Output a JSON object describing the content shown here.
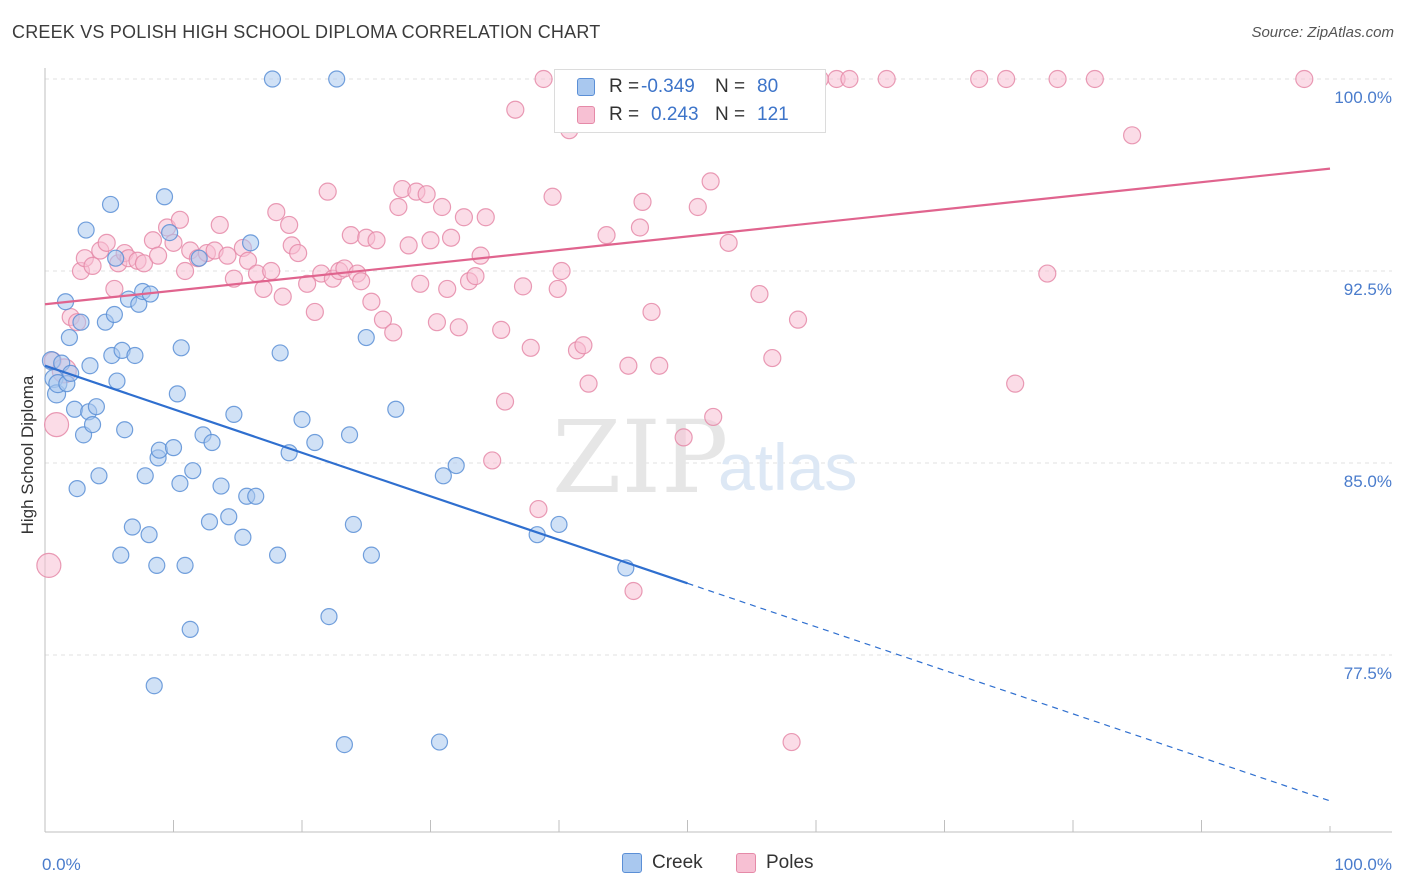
{
  "header": {
    "title": "CREEK VS POLISH HIGH SCHOOL DIPLOMA CORRELATION CHART",
    "source": "Source: ZipAtlas.com"
  },
  "watermark": {
    "zip": "ZIP",
    "atlas": "atlas"
  },
  "legend": {
    "rows": [
      {
        "r_label": "R =",
        "r_value": "-0.349",
        "n_label": "N =",
        "n_value": "80"
      },
      {
        "r_label": "R =",
        "r_value": "0.243",
        "n_label": "N =",
        "n_value": "121"
      }
    ]
  },
  "colors": {
    "creek_fill": "#a9c8ef",
    "creek_stroke": "#5b8fd6",
    "creek_line": "#2f6fcf",
    "poles_fill": "#f7c0d3",
    "poles_stroke": "#e58aa8",
    "poles_line": "#e0648e",
    "tick_label": "#4a7ccc",
    "grid": "#e2e2e2"
  },
  "chart_data": {
    "type": "scatter",
    "title": "CREEK VS POLISH HIGH SCHOOL DIPLOMA CORRELATION CHART",
    "xlabel": "",
    "ylabel": "High School Diploma",
    "xlim": [
      0,
      100
    ],
    "ylim": [
      71.5,
      101
    ],
    "x_tick_labels": [
      "0.0%",
      "100.0%"
    ],
    "y_ticks": [
      77.5,
      85.0,
      92.5,
      100.0
    ],
    "y_tick_labels": [
      "77.5%",
      "85.0%",
      "92.5%",
      "100.0%"
    ],
    "grid": "horizontal dashed",
    "legend_position": "top-center",
    "series": [
      {
        "name": "Creek",
        "r": -0.349,
        "n": 80,
        "trend": {
          "x_start": 0,
          "y_start": 88.8,
          "x_solid_end": 50,
          "y_solid_end": 80.3,
          "x_end": 100,
          "y_end": 71.8
        },
        "points": [
          [
            0.5,
            89.0
          ],
          [
            0.7,
            88.3
          ],
          [
            0.9,
            87.7
          ],
          [
            1.0,
            88.1
          ],
          [
            1.3,
            88.9
          ],
          [
            1.6,
            91.3
          ],
          [
            1.7,
            88.1
          ],
          [
            1.9,
            89.9
          ],
          [
            2.0,
            88.5
          ],
          [
            2.3,
            87.1
          ],
          [
            2.5,
            84.0
          ],
          [
            2.8,
            90.5
          ],
          [
            3.0,
            86.1
          ],
          [
            3.2,
            94.1
          ],
          [
            3.4,
            87.0
          ],
          [
            3.5,
            88.8
          ],
          [
            3.7,
            86.5
          ],
          [
            4.0,
            87.2
          ],
          [
            4.2,
            84.5
          ],
          [
            4.7,
            90.5
          ],
          [
            5.1,
            95.1
          ],
          [
            5.2,
            89.2
          ],
          [
            5.4,
            90.8
          ],
          [
            5.6,
            88.2
          ],
          [
            5.9,
            81.4
          ],
          [
            6.0,
            89.4
          ],
          [
            6.2,
            86.3
          ],
          [
            6.5,
            91.4
          ],
          [
            6.8,
            82.5
          ],
          [
            7.0,
            89.2
          ],
          [
            7.3,
            91.2
          ],
          [
            7.6,
            91.7
          ],
          [
            7.8,
            84.5
          ],
          [
            8.1,
            82.2
          ],
          [
            8.2,
            91.6
          ],
          [
            8.5,
            76.3
          ],
          [
            8.7,
            81.0
          ],
          [
            8.8,
            85.2
          ],
          [
            8.9,
            85.5
          ],
          [
            9.3,
            95.4
          ],
          [
            9.7,
            94.0
          ],
          [
            10.0,
            85.6
          ],
          [
            10.3,
            87.7
          ],
          [
            10.5,
            84.2
          ],
          [
            10.6,
            89.5
          ],
          [
            10.9,
            81.0
          ],
          [
            11.3,
            78.5
          ],
          [
            11.5,
            84.7
          ],
          [
            12.3,
            86.1
          ],
          [
            12.8,
            82.7
          ],
          [
            13.0,
            85.8
          ],
          [
            13.7,
            84.1
          ],
          [
            14.3,
            82.9
          ],
          [
            14.7,
            86.9
          ],
          [
            15.4,
            82.1
          ],
          [
            15.7,
            83.7
          ],
          [
            16.0,
            93.6
          ],
          [
            16.4,
            83.7
          ],
          [
            18.1,
            81.4
          ],
          [
            18.3,
            89.3
          ],
          [
            19.0,
            85.4
          ],
          [
            20.0,
            86.7
          ],
          [
            21.0,
            85.8
          ],
          [
            22.1,
            79.0
          ],
          [
            22.7,
            100.0
          ],
          [
            23.3,
            74.0
          ],
          [
            23.7,
            86.1
          ],
          [
            24.0,
            82.6
          ],
          [
            25.0,
            89.9
          ],
          [
            25.4,
            81.4
          ],
          [
            27.3,
            87.1
          ],
          [
            30.7,
            74.1
          ],
          [
            31.0,
            84.5
          ],
          [
            32.0,
            84.9
          ],
          [
            38.3,
            82.2
          ],
          [
            40.0,
            82.6
          ],
          [
            45.2,
            80.9
          ],
          [
            17.7,
            100.0
          ],
          [
            5.5,
            93.0
          ],
          [
            12.0,
            93.0
          ]
        ]
      },
      {
        "name": "Poles",
        "r": 0.243,
        "n": 121,
        "trend": {
          "x_start": 0,
          "y_start": 91.2,
          "x_end": 100,
          "y_end": 96.5
        },
        "points": [
          [
            0.3,
            81.0
          ],
          [
            0.6,
            89.0
          ],
          [
            0.9,
            86.5
          ],
          [
            1.5,
            88.6
          ],
          [
            2.0,
            90.7
          ],
          [
            2.5,
            90.5
          ],
          [
            2.8,
            92.5
          ],
          [
            3.1,
            93.0
          ],
          [
            3.7,
            92.7
          ],
          [
            4.3,
            93.3
          ],
          [
            4.8,
            93.6
          ],
          [
            5.4,
            91.8
          ],
          [
            5.7,
            92.8
          ],
          [
            6.2,
            93.2
          ],
          [
            6.5,
            93.0
          ],
          [
            7.2,
            92.9
          ],
          [
            7.7,
            92.8
          ],
          [
            8.4,
            93.7
          ],
          [
            8.8,
            93.1
          ],
          [
            9.5,
            94.2
          ],
          [
            10.0,
            93.6
          ],
          [
            10.5,
            94.5
          ],
          [
            10.9,
            92.5
          ],
          [
            11.3,
            93.3
          ],
          [
            11.9,
            93.0
          ],
          [
            12.6,
            93.2
          ],
          [
            13.2,
            93.3
          ],
          [
            13.6,
            94.3
          ],
          [
            14.2,
            93.1
          ],
          [
            14.7,
            92.2
          ],
          [
            15.4,
            93.4
          ],
          [
            15.8,
            92.9
          ],
          [
            16.5,
            92.4
          ],
          [
            17.0,
            91.8
          ],
          [
            17.6,
            92.5
          ],
          [
            18.0,
            94.8
          ],
          [
            18.5,
            91.5
          ],
          [
            19.0,
            94.3
          ],
          [
            19.2,
            93.5
          ],
          [
            19.7,
            93.2
          ],
          [
            20.4,
            92.0
          ],
          [
            21.0,
            90.9
          ],
          [
            21.5,
            92.4
          ],
          [
            22.0,
            95.6
          ],
          [
            22.4,
            92.2
          ],
          [
            22.9,
            92.5
          ],
          [
            23.3,
            92.6
          ],
          [
            23.8,
            93.9
          ],
          [
            24.3,
            92.4
          ],
          [
            24.6,
            92.1
          ],
          [
            25.0,
            93.8
          ],
          [
            25.4,
            91.3
          ],
          [
            25.8,
            93.7
          ],
          [
            26.3,
            90.6
          ],
          [
            27.1,
            90.1
          ],
          [
            27.5,
            95.0
          ],
          [
            27.8,
            95.7
          ],
          [
            28.3,
            93.5
          ],
          [
            28.9,
            95.6
          ],
          [
            29.2,
            92.0
          ],
          [
            30.0,
            93.7
          ],
          [
            30.5,
            90.5
          ],
          [
            30.9,
            95.0
          ],
          [
            31.3,
            91.8
          ],
          [
            31.6,
            93.8
          ],
          [
            32.2,
            90.3
          ],
          [
            32.6,
            94.6
          ],
          [
            33.0,
            92.1
          ],
          [
            33.5,
            92.3
          ],
          [
            33.9,
            93.1
          ],
          [
            34.3,
            94.6
          ],
          [
            34.8,
            85.1
          ],
          [
            35.5,
            90.2
          ],
          [
            35.8,
            87.4
          ],
          [
            36.6,
            98.8
          ],
          [
            37.2,
            91.9
          ],
          [
            37.8,
            89.5
          ],
          [
            38.4,
            83.2
          ],
          [
            38.8,
            100.0
          ],
          [
            39.5,
            95.4
          ],
          [
            39.9,
            91.8
          ],
          [
            40.2,
            92.5
          ],
          [
            40.8,
            98.0
          ],
          [
            41.4,
            89.4
          ],
          [
            41.9,
            89.6
          ],
          [
            42.3,
            88.1
          ],
          [
            43.7,
            93.9
          ],
          [
            44.5,
            100.0
          ],
          [
            45.4,
            88.8
          ],
          [
            45.8,
            80.0
          ],
          [
            46.3,
            94.2
          ],
          [
            46.5,
            95.2
          ],
          [
            47.2,
            90.9
          ],
          [
            47.8,
            88.8
          ],
          [
            48.5,
            100.0
          ],
          [
            49.7,
            86.0
          ],
          [
            50.4,
            100.0
          ],
          [
            50.8,
            95.0
          ],
          [
            51.8,
            96.0
          ],
          [
            52.0,
            86.8
          ],
          [
            53.2,
            93.6
          ],
          [
            54.0,
            100.0
          ],
          [
            55.2,
            100.0
          ],
          [
            55.6,
            91.6
          ],
          [
            56.6,
            89.1
          ],
          [
            58.1,
            74.1
          ],
          [
            58.6,
            90.6
          ],
          [
            60.3,
            100.0
          ],
          [
            61.6,
            100.0
          ],
          [
            62.6,
            100.0
          ],
          [
            65.5,
            100.0
          ],
          [
            72.7,
            100.0
          ],
          [
            74.8,
            100.0
          ],
          [
            75.5,
            88.1
          ],
          [
            78.0,
            92.4
          ],
          [
            78.8,
            100.0
          ],
          [
            81.7,
            100.0
          ],
          [
            84.6,
            97.8
          ],
          [
            98.0,
            100.0
          ],
          [
            42.3,
            100.0
          ],
          [
            29.7,
            95.5
          ]
        ]
      }
    ]
  }
}
